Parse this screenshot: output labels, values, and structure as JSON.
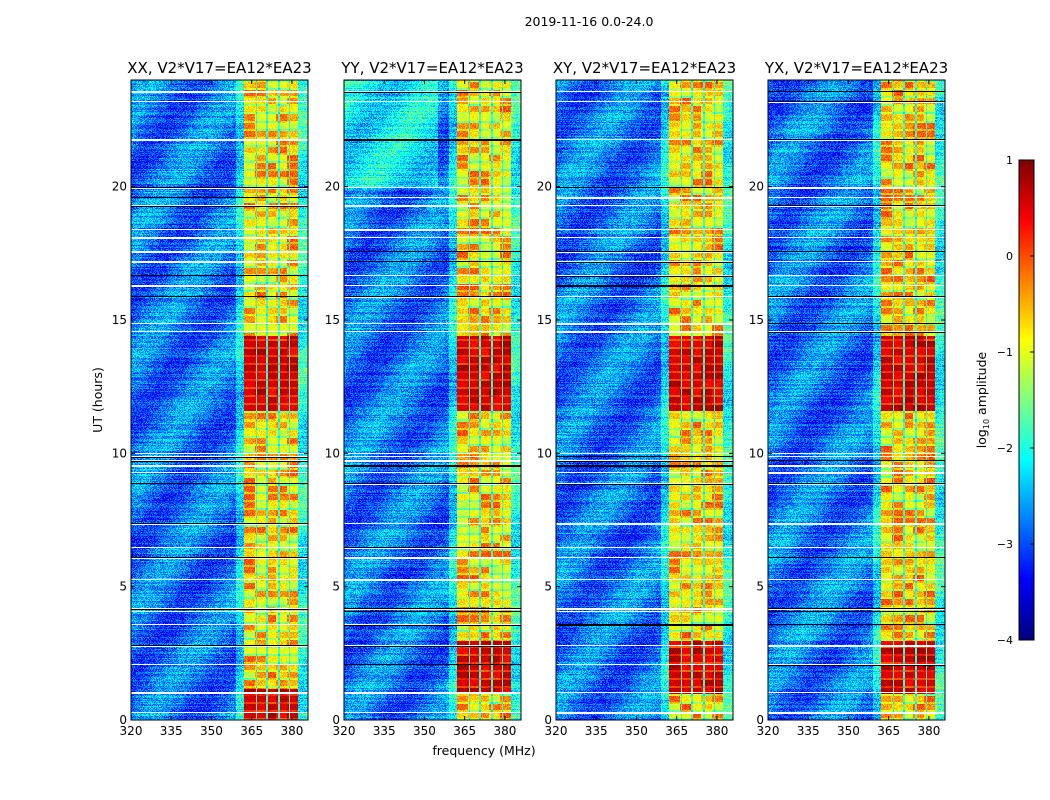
{
  "chart_data": {
    "type": "heatmap",
    "title": "2019-11-16 0.0-24.0",
    "xlabel": "frequency (MHz)",
    "ylabel": "UT (hours)",
    "xlim": [
      320,
      386
    ],
    "ylim": [
      0,
      24
    ],
    "xticks": [
      "320",
      "335",
      "350",
      "365",
      "380"
    ],
    "xtick_values": [
      320,
      335,
      350,
      365,
      380
    ],
    "yticks": [
      "0",
      "5",
      "10",
      "15",
      "20"
    ],
    "ytick_values": [
      0,
      5,
      10,
      15,
      20
    ],
    "colorbar": {
      "label": "log10 amplitude",
      "label_main": "log",
      "label_sub": "10",
      "label_rest": " amplitude",
      "range": [
        -4,
        1
      ],
      "ticks": [
        "−4",
        "−3",
        "−2",
        "−1",
        "0",
        "1"
      ],
      "tick_values": [
        -4,
        -3,
        -2,
        -1,
        0,
        1
      ],
      "colormap": "jet"
    },
    "panels": [
      {
        "title": "XX, V2*V17=EA12*EA23",
        "low_time_strong": false,
        "seed": 11
      },
      {
        "title": "YY, V2*V17=EA12*EA23",
        "low_time_strong": true,
        "seed": 23
      },
      {
        "title": "XY, V2*V17=EA12*EA23",
        "low_time_strong": true,
        "seed": 37
      },
      {
        "title": "YX, V2*V17=EA12*EA23",
        "low_time_strong": true,
        "seed": 51
      }
    ],
    "features": {
      "background_level": -2.8,
      "bright_band_mhz": [
        362,
        382
      ],
      "bright_band_level": -0.6,
      "band_gap_channels_mhz": [
        366.5,
        370.5,
        375,
        379
      ],
      "strong_intervals_hours": [
        [
          11.6,
          14.4
        ],
        [
          1.0,
          3.0
        ]
      ],
      "strong_level": 0.6,
      "flagged_hours": [
        0.3,
        1.05,
        2.1,
        2.8,
        3.6,
        4.1,
        4.2,
        5.3,
        6.1,
        6.5,
        7.4,
        8.9,
        9.3,
        9.55,
        9.75,
        9.9,
        10.0,
        14.6,
        14.9,
        15.9,
        16.3,
        16.7,
        17.2,
        17.6,
        18.1,
        18.4,
        19.3,
        19.6,
        20.0,
        21.8,
        23.2,
        23.6
      ]
    }
  }
}
